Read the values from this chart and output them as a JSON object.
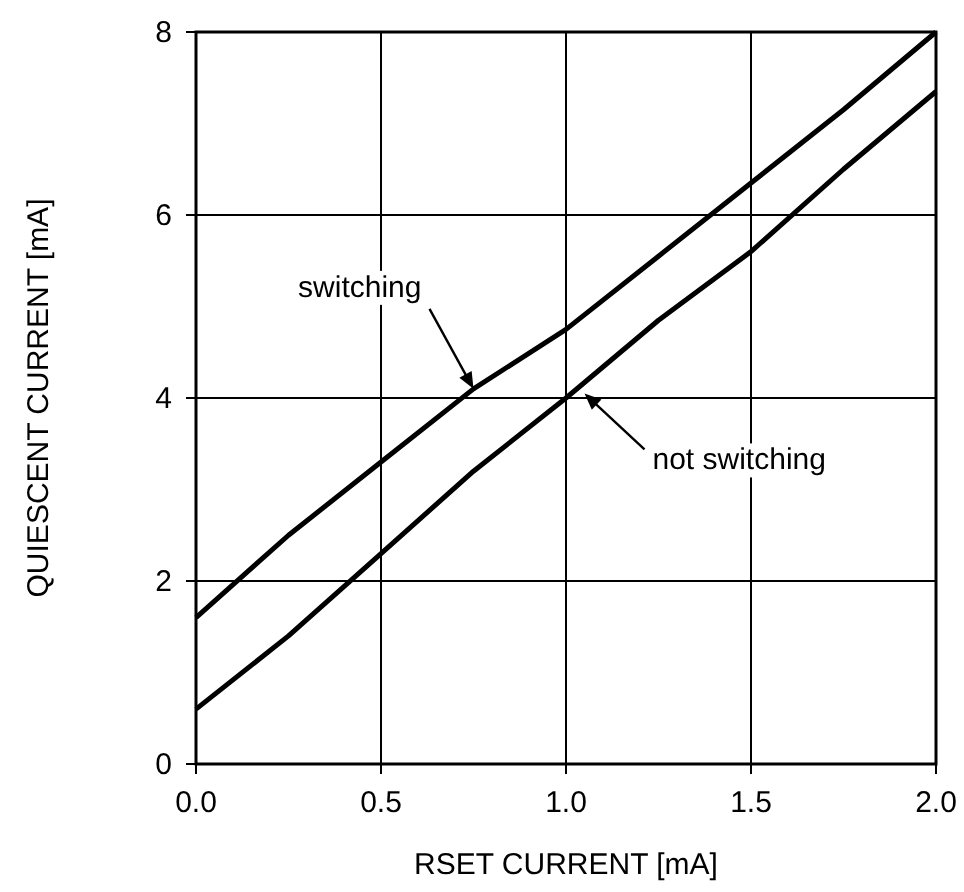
{
  "chart_data": {
    "type": "line",
    "xlabel": "RSET CURRENT [mA]",
    "ylabel": "QUIESCENT CURRENT [mA]",
    "x": [
      0,
      0.25,
      0.5,
      0.75,
      1.0,
      1.25,
      1.5,
      1.75,
      2.0
    ],
    "series": [
      {
        "color": "#000000",
        "values": [
          1.6,
          2.5,
          3.3,
          4.1,
          4.75,
          5.55,
          6.35,
          7.15,
          8.0
        ]
      },
      {
        "color": "#000000",
        "values": [
          0.6,
          1.4,
          2.3,
          3.2,
          4.0,
          4.85,
          5.6,
          6.5,
          7.35
        ]
      }
    ],
    "xlim": [
      0,
      2
    ],
    "xticks": [
      {
        "value": 0,
        "label": "0.0"
      },
      {
        "value": 0.5,
        "label": "0.5"
      },
      {
        "value": 1,
        "label": "1.0"
      },
      {
        "value": 1.5,
        "label": "1.5"
      },
      {
        "value": 2,
        "label": "2.0"
      }
    ],
    "ylim": [
      0,
      8
    ],
    "yticks": [
      0,
      2,
      4,
      6,
      8
    ],
    "grid": true,
    "marker": "none",
    "line_style": "solid",
    "annotations": [
      {
        "text": "switching",
        "x": 0.75,
        "y": 4.1
      },
      {
        "text": "not switching",
        "x": 1.05,
        "y": 4.05
      }
    ]
  }
}
